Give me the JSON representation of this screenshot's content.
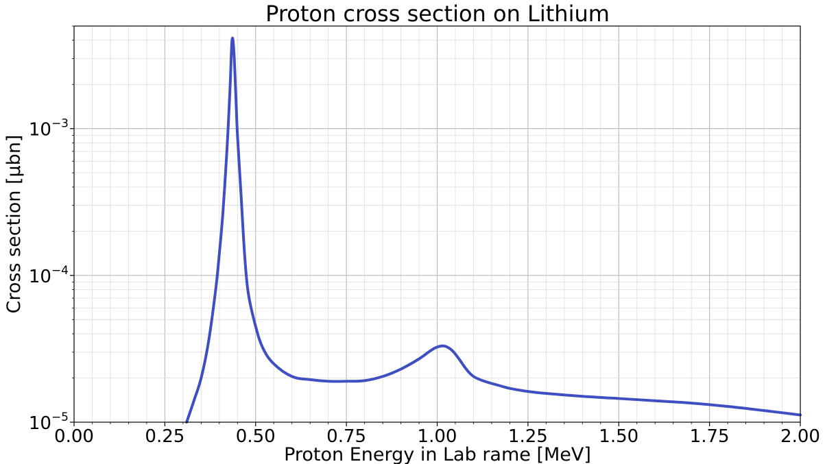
{
  "chart_data": {
    "type": "line",
    "title": "Proton cross section on Lithium",
    "xlabel": "Proton Energy in Lab rame [MeV]",
    "ylabel": "Cross section [μbn]",
    "xlim": [
      0.0,
      2.0
    ],
    "ylim": [
      1e-05,
      0.005
    ],
    "yscale": "log",
    "grid": true,
    "line_color": "#3f4fc1",
    "x_ticks": [
      "0.00",
      "0.25",
      "0.50",
      "0.75",
      "1.00",
      "1.25",
      "1.50",
      "1.75",
      "2.00"
    ],
    "y_ticks": [
      {
        "base": "10",
        "exp": "−5"
      },
      {
        "base": "10",
        "exp": "−4"
      },
      {
        "base": "10",
        "exp": "−3"
      }
    ],
    "series": [
      {
        "x": [
          0.31,
          0.33,
          0.35,
          0.37,
          0.39,
          0.4,
          0.41,
          0.42,
          0.425,
          0.43,
          0.435,
          0.44,
          0.445,
          0.45,
          0.46,
          0.47,
          0.48,
          0.5,
          0.52,
          0.55,
          0.6,
          0.65,
          0.7,
          0.75,
          0.8,
          0.85,
          0.9,
          0.95,
          0.98,
          1.0,
          1.02,
          1.04,
          1.06,
          1.08,
          1.1,
          1.13,
          1.17,
          1.2,
          1.25,
          1.3,
          1.4,
          1.5,
          1.6,
          1.7,
          1.8,
          1.9,
          2.0
        ],
        "y": [
          1e-05,
          1.4e-05,
          2e-05,
          3.5e-05,
          8e-05,
          0.00014,
          0.00027,
          0.00065,
          0.0011,
          0.002,
          0.004,
          0.0034,
          0.0018,
          0.0009,
          0.00035,
          0.000135,
          7.5e-05,
          4.5e-05,
          3.2e-05,
          2.5e-05,
          2.05e-05,
          1.95e-05,
          1.9e-05,
          1.9e-05,
          1.92e-05,
          2.05e-05,
          2.3e-05,
          2.7e-05,
          3.05e-05,
          3.25e-05,
          3.3e-05,
          3.1e-05,
          2.7e-05,
          2.3e-05,
          2.05e-05,
          1.9e-05,
          1.78e-05,
          1.7e-05,
          1.62e-05,
          1.57e-05,
          1.5e-05,
          1.45e-05,
          1.4e-05,
          1.35e-05,
          1.28e-05,
          1.2e-05,
          1.12e-05
        ]
      }
    ]
  }
}
